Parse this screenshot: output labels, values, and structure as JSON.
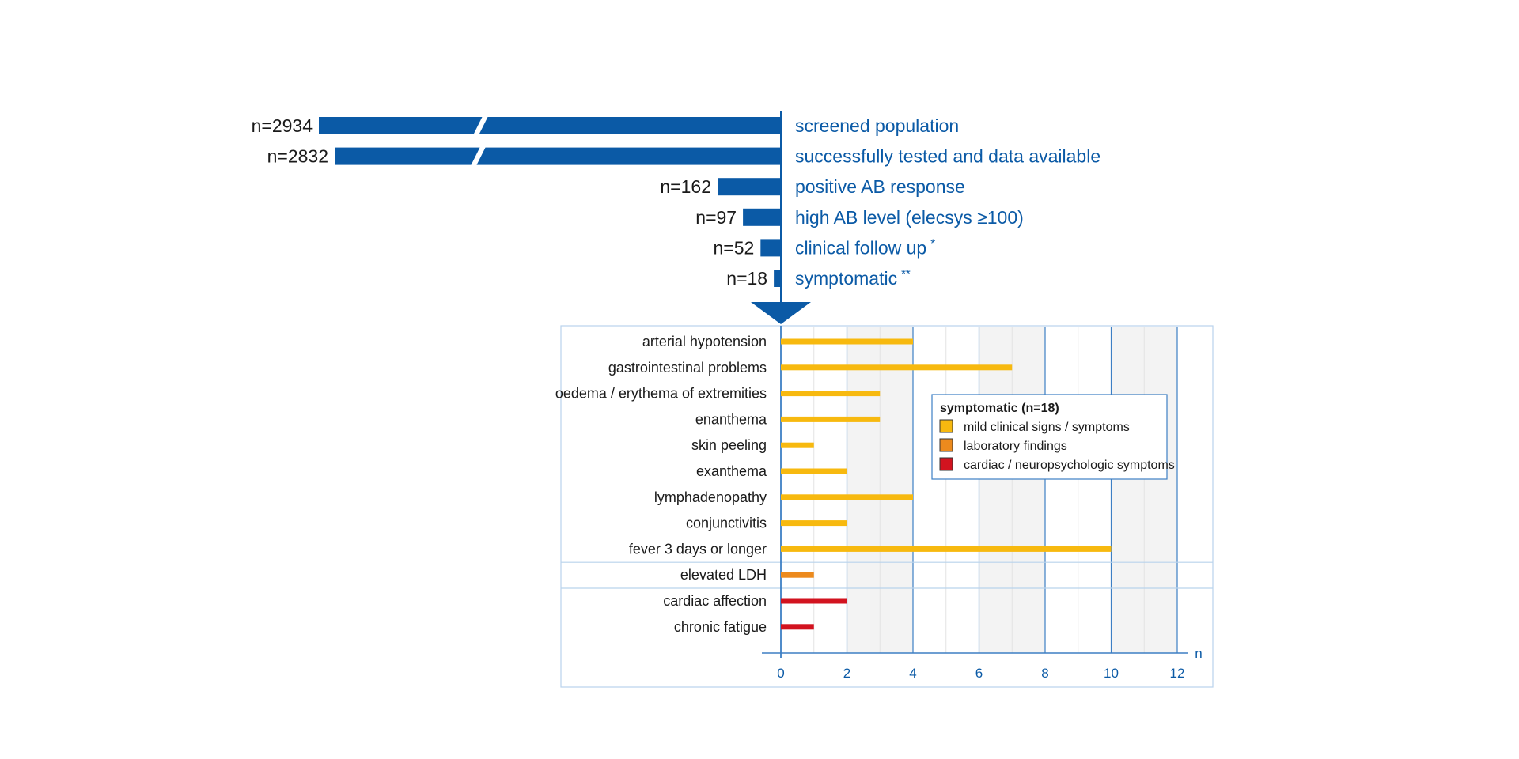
{
  "colors": {
    "blue": "#0b5aa6",
    "frame": "#b9d3ec",
    "grid_major": "#3d7fc4",
    "grid_minor": "#e3e3e3",
    "band": "#f3f3f3",
    "mild": "#f7b90f",
    "lab": "#ec8a1d",
    "cardiac": "#d2131f"
  },
  "funnel": [
    {
      "n_label": "n=2934",
      "n": 2934,
      "label": "screened population",
      "marker": "",
      "broken": true
    },
    {
      "n_label": "n=2832",
      "n": 2832,
      "label": "successfully tested and data available",
      "marker": "",
      "broken": true
    },
    {
      "n_label": "n=162",
      "n": 162,
      "label": "positive AB response",
      "marker": "",
      "broken": false
    },
    {
      "n_label": "n=97",
      "n": 97,
      "label": "high AB level (elecsys ≥100)",
      "marker": "",
      "broken": false
    },
    {
      "n_label": "n=52",
      "n": 52,
      "label": "clinical follow up",
      "marker": "*",
      "broken": false
    },
    {
      "n_label": "n=18",
      "n": 18,
      "label": "symptomatic",
      "marker": "**",
      "broken": false
    }
  ],
  "chart_data": {
    "type": "bar",
    "orientation": "horizontal",
    "categories": [
      "arterial hypotension",
      "gastrointestinal problems",
      "oedema / erythema of extremities",
      "enanthema",
      "skin peeling",
      "exanthema",
      "lymphadenopathy",
      "conjunctivitis",
      "fever 3 days or longer",
      "elevated LDH",
      "cardiac affection",
      "chronic fatigue"
    ],
    "values": [
      4,
      7,
      3,
      3,
      1,
      2,
      4,
      2,
      10,
      1,
      2,
      1
    ],
    "groups": [
      "mild",
      "mild",
      "mild",
      "mild",
      "mild",
      "mild",
      "mild",
      "mild",
      "mild",
      "lab",
      "cardiac",
      "cardiac"
    ],
    "xlabel": "n",
    "xlim": [
      0,
      12
    ],
    "xticks": [
      0,
      2,
      4,
      6,
      8,
      10,
      12
    ],
    "grid": true,
    "legend": {
      "title": "symptomatic (n=18)",
      "placement": "center-right",
      "items": [
        {
          "key": "mild",
          "label": "mild clinical signs / symptoms"
        },
        {
          "key": "lab",
          "label": "laboratory findings"
        },
        {
          "key": "cardiac",
          "label": "cardiac / neuropsychologic symptoms"
        }
      ]
    }
  }
}
